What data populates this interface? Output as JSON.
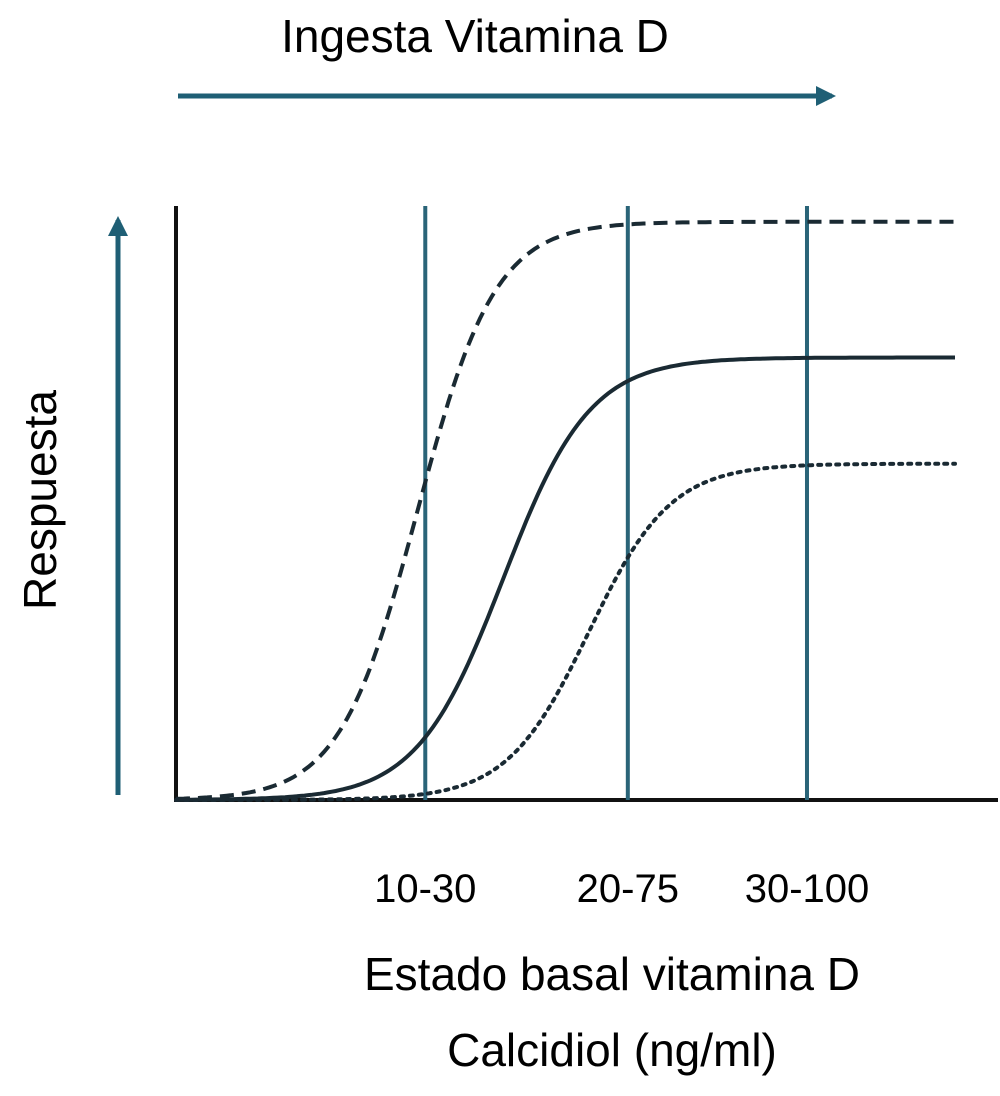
{
  "chart_data": {
    "type": "line",
    "title": "Ingesta Vitamina D",
    "ylabel": "Respuesta",
    "xlabel_lines": [
      "Estado basal vitamina D",
      "Calcidiol (ng/ml)"
    ],
    "ranges": [
      "10-30",
      "20-75",
      "30-100"
    ],
    "xlim": [
      0,
      100
    ],
    "ylim": [
      0,
      100
    ],
    "grid": false,
    "colors": {
      "axis": "#111111",
      "arrow": "#1f5f75",
      "ref_line": "#2a6478",
      "curve": "#1a2a33"
    },
    "series": [
      {
        "style": "dashed",
        "max": 98,
        "midpoint": 31,
        "steepness": 0.2
      },
      {
        "style": "solid",
        "max": 75,
        "midpoint": 42,
        "steepness": 0.18
      },
      {
        "style": "dotted",
        "max": 57,
        "midpoint": 53,
        "steepness": 0.19
      }
    ],
    "ref_positions": [
      32,
      58,
      81
    ]
  }
}
